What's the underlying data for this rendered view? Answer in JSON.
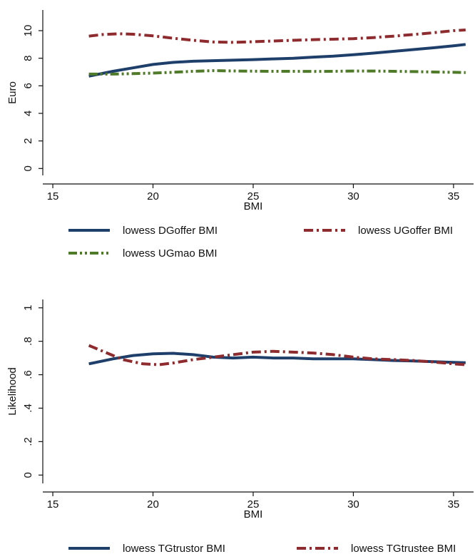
{
  "chart_data": [
    {
      "type": "line",
      "xlabel": "BMI",
      "ylabel": "Euro",
      "xlim": [
        14.5,
        36
      ],
      "ylim": [
        -0.5,
        11.5
      ],
      "xticks": [
        15,
        20,
        25,
        30,
        35
      ],
      "xtick_labels": [
        "15",
        "20",
        "25",
        "30",
        "35"
      ],
      "yticks": [
        0,
        2,
        4,
        6,
        8,
        10
      ],
      "ytick_labels": [
        "0",
        "2",
        "4",
        "6",
        "8",
        "10"
      ],
      "grid": false,
      "legend_position": "bottom",
      "series": [
        {
          "name": "lowess DGoffer BMI",
          "color": "#1f3f6b",
          "dash": "solid",
          "x": [
            16.8,
            18,
            19,
            20,
            21,
            22,
            23,
            24,
            25,
            26,
            27,
            28,
            29,
            30,
            31,
            32,
            33,
            34,
            35,
            35.6
          ],
          "y": [
            6.7,
            7.05,
            7.3,
            7.55,
            7.7,
            7.78,
            7.82,
            7.86,
            7.9,
            7.95,
            8.0,
            8.08,
            8.15,
            8.25,
            8.37,
            8.5,
            8.63,
            8.76,
            8.9,
            9.0
          ]
        },
        {
          "name": "lowess UGoffer BMI",
          "color": "#8e2b2e",
          "dash": "dashdot",
          "x": [
            16.8,
            17.5,
            18.3,
            19,
            20,
            21,
            22,
            23,
            24,
            25,
            26,
            27,
            28,
            29,
            30,
            31,
            32,
            33,
            34,
            35,
            35.6
          ],
          "y": [
            9.6,
            9.72,
            9.78,
            9.74,
            9.62,
            9.45,
            9.3,
            9.18,
            9.15,
            9.2,
            9.25,
            9.3,
            9.35,
            9.38,
            9.42,
            9.5,
            9.6,
            9.72,
            9.85,
            10.0,
            10.05
          ]
        },
        {
          "name": "lowess UGmao BMI",
          "color": "#4f7a28",
          "dash": "dashdotdot",
          "x": [
            16.8,
            18,
            19,
            20,
            21,
            22,
            23,
            24,
            25,
            26,
            27,
            28,
            29,
            30,
            31,
            32,
            33,
            34,
            35,
            35.6
          ],
          "y": [
            6.85,
            6.85,
            6.88,
            6.92,
            6.98,
            7.05,
            7.1,
            7.08,
            7.06,
            7.05,
            7.05,
            7.04,
            7.05,
            7.07,
            7.07,
            7.05,
            7.03,
            7.0,
            6.98,
            6.96
          ]
        }
      ]
    },
    {
      "type": "line",
      "xlabel": "BMI",
      "ylabel": "Likelihood",
      "xlim": [
        14.5,
        36
      ],
      "ylim": [
        -0.05,
        1.05
      ],
      "xticks": [
        15,
        20,
        25,
        30,
        35
      ],
      "xtick_labels": [
        "15",
        "20",
        "25",
        "30",
        "35"
      ],
      "yticks": [
        0,
        0.2,
        0.4,
        0.6,
        0.8,
        1
      ],
      "ytick_labels": [
        "0",
        ".2",
        ".4",
        ".6",
        ".8",
        "1"
      ],
      "grid": false,
      "legend_position": "bottom",
      "series": [
        {
          "name": "lowess TGtrustor BMI",
          "color": "#1f3f6b",
          "dash": "solid",
          "x": [
            16.8,
            18,
            19,
            20,
            21,
            22,
            23,
            24,
            25,
            26,
            27,
            28,
            29,
            30,
            31,
            32,
            33,
            34,
            35,
            35.6
          ],
          "y": [
            0.665,
            0.695,
            0.715,
            0.725,
            0.728,
            0.72,
            0.705,
            0.7,
            0.705,
            0.7,
            0.7,
            0.695,
            0.695,
            0.695,
            0.69,
            0.685,
            0.682,
            0.678,
            0.674,
            0.672
          ]
        },
        {
          "name": "lowess TGtrustee BMI",
          "color": "#8e2b2e",
          "dash": "dashdot",
          "x": [
            16.8,
            17.5,
            18.5,
            19.5,
            20.3,
            21,
            22,
            23,
            24,
            25,
            26,
            27,
            28,
            29,
            30,
            31,
            32,
            33,
            34,
            35,
            35.6
          ],
          "y": [
            0.775,
            0.74,
            0.69,
            0.665,
            0.66,
            0.67,
            0.69,
            0.705,
            0.72,
            0.735,
            0.74,
            0.735,
            0.73,
            0.72,
            0.705,
            0.695,
            0.69,
            0.685,
            0.676,
            0.665,
            0.66
          ]
        }
      ]
    }
  ]
}
